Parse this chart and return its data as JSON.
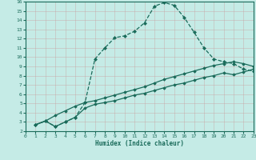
{
  "xlabel": "Humidex (Indice chaleur)",
  "xlim": [
    0,
    23
  ],
  "ylim": [
    2,
    16
  ],
  "xticks": [
    0,
    1,
    2,
    3,
    4,
    5,
    6,
    7,
    8,
    9,
    10,
    11,
    12,
    13,
    14,
    15,
    16,
    17,
    18,
    19,
    20,
    21,
    22,
    23
  ],
  "yticks": [
    2,
    3,
    4,
    5,
    6,
    7,
    8,
    9,
    10,
    11,
    12,
    13,
    14,
    15,
    16
  ],
  "bg_color": "#c5ebe6",
  "line_color": "#1a6b5a",
  "grid_color": "#b0ddd7",
  "curve1_x": [
    1,
    2,
    3,
    4,
    5,
    6,
    7,
    8,
    9,
    10,
    11,
    12,
    13,
    14,
    15,
    16,
    17,
    18,
    19,
    20,
    21,
    22,
    23
  ],
  "curve1_y": [
    2.7,
    3.1,
    2.5,
    3.0,
    3.5,
    5.1,
    9.8,
    11.0,
    12.1,
    12.3,
    12.8,
    13.7,
    15.5,
    15.9,
    15.6,
    14.3,
    12.7,
    11.0,
    9.8,
    9.5,
    9.3,
    8.7,
    8.5
  ],
  "curve2_x": [
    1,
    2,
    3,
    4,
    5,
    6,
    7,
    8,
    9,
    10,
    11,
    12,
    13,
    14,
    15,
    16,
    17,
    18,
    19,
    20,
    21,
    22,
    23
  ],
  "curve2_y": [
    2.7,
    3.1,
    3.7,
    4.2,
    4.7,
    5.1,
    5.3,
    5.6,
    5.9,
    6.2,
    6.5,
    6.8,
    7.2,
    7.6,
    7.9,
    8.2,
    8.5,
    8.8,
    9.1,
    9.3,
    9.5,
    9.3,
    9.0
  ],
  "curve3_x": [
    1,
    2,
    3,
    4,
    5,
    6,
    7,
    8,
    9,
    10,
    11,
    12,
    13,
    14,
    15,
    16,
    17,
    18,
    19,
    20,
    21,
    22,
    23
  ],
  "curve3_y": [
    2.7,
    3.1,
    2.5,
    3.0,
    3.5,
    4.5,
    4.9,
    5.1,
    5.3,
    5.6,
    5.9,
    6.1,
    6.4,
    6.7,
    7.0,
    7.2,
    7.5,
    7.8,
    8.0,
    8.3,
    8.1,
    8.4,
    8.7
  ]
}
